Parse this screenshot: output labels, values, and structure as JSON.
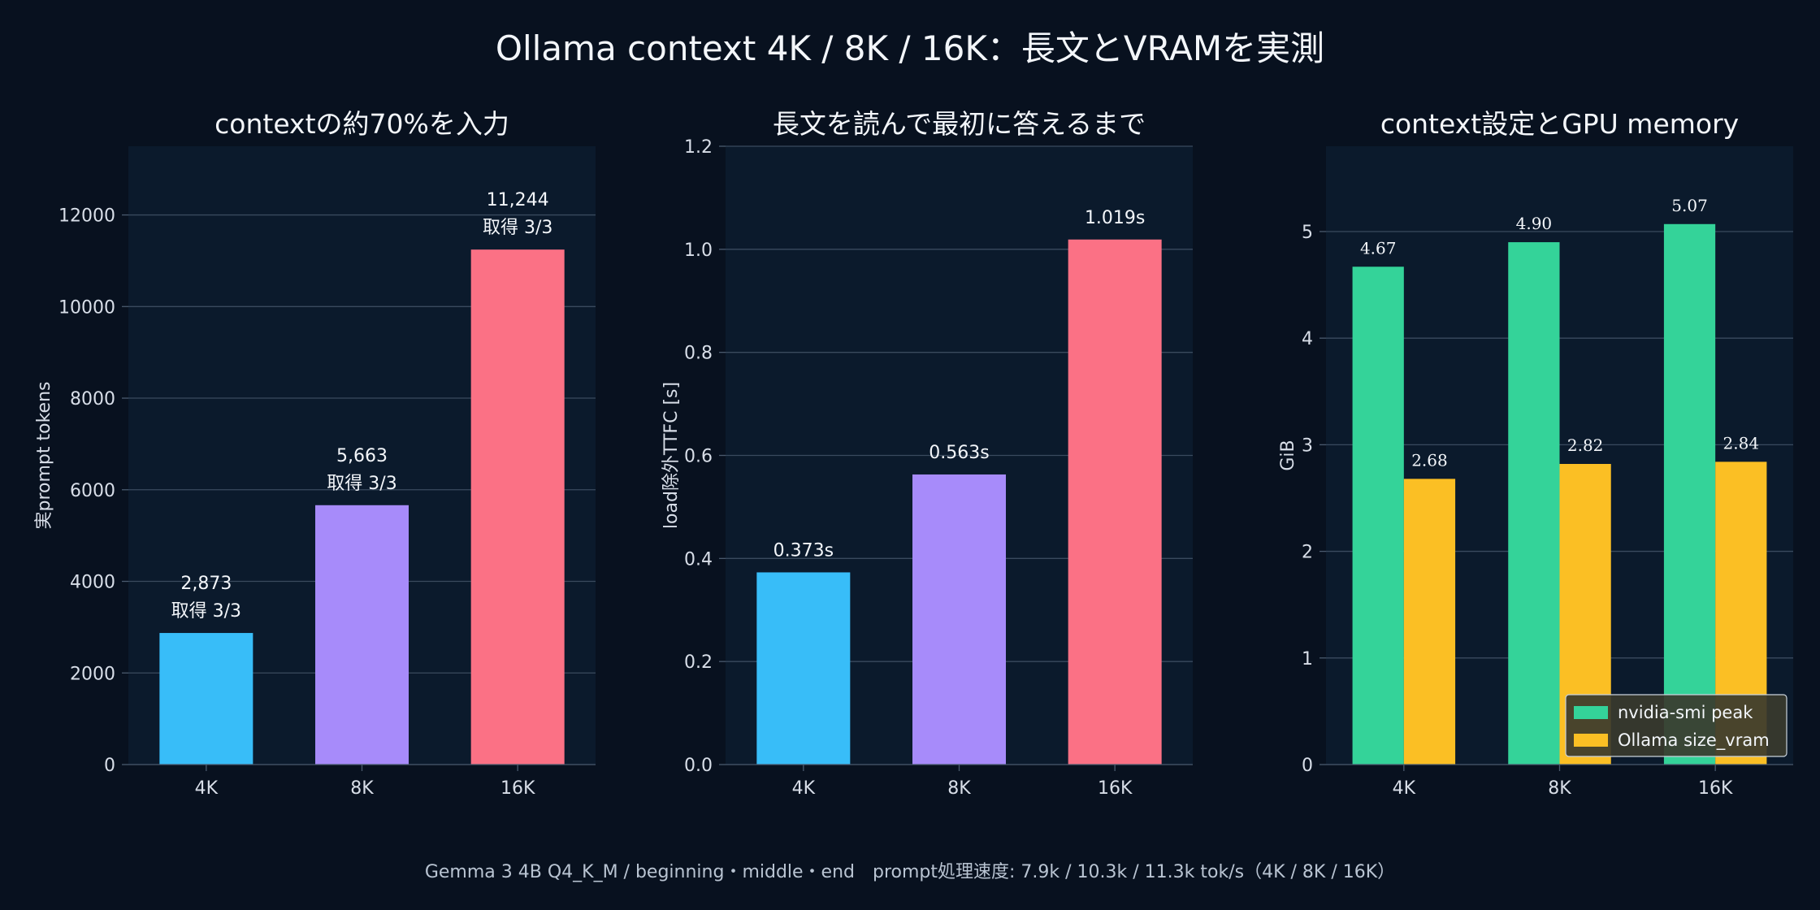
{
  "title": "Ollama context 4K / 8K / 16K：長文とVRAMを実測",
  "footer": "Gemma 3 4B Q4_K_M / beginning・middle・end　prompt処理速度: 7.9k / 10.3k / 11.3k tok/s（4K / 8K / 16K）",
  "chart_data": [
    {
      "type": "bar",
      "title": "contextの約70%を入力",
      "xlabel": "",
      "ylabel": "実prompt tokens",
      "categories": [
        "4K",
        "8K",
        "16K"
      ],
      "values": [
        2873,
        5663,
        11244
      ],
      "value_labels": [
        "2,873",
        "5,663",
        "11,244"
      ],
      "sub_labels": [
        "取得 3/3",
        "取得 3/3",
        "取得 3/3"
      ],
      "colors": [
        "#38bdf8",
        "#a78bfa",
        "#fb7185"
      ],
      "ylim": [
        0,
        13500
      ],
      "yticks": [
        0,
        2000,
        4000,
        6000,
        8000,
        10000,
        12000
      ],
      "ytick_labels": [
        "0",
        "2000",
        "4000",
        "6000",
        "8000",
        "10000",
        "12000"
      ],
      "grid": true
    },
    {
      "type": "bar",
      "title": "長文を読んで最初に答えるまで",
      "xlabel": "",
      "ylabel": "load除外TTFC [s]",
      "categories": [
        "4K",
        "8K",
        "16K"
      ],
      "values": [
        0.373,
        0.563,
        1.019
      ],
      "value_labels": [
        "0.373s",
        "0.563s",
        "1.019s"
      ],
      "colors": [
        "#38bdf8",
        "#a78bfa",
        "#fb7185"
      ],
      "ylim": [
        0,
        1.2
      ],
      "yticks": [
        0,
        0.2,
        0.4,
        0.6,
        0.8,
        1.0,
        1.2
      ],
      "ytick_labels": [
        "0.0",
        "0.2",
        "0.4",
        "0.6",
        "0.8",
        "1.0",
        "1.2"
      ],
      "grid": true
    },
    {
      "type": "bar",
      "title": "context設定とGPU memory",
      "xlabel": "",
      "ylabel": "GiB",
      "categories": [
        "4K",
        "8K",
        "16K"
      ],
      "series": [
        {
          "name": "nvidia-smi peak",
          "values": [
            4.67,
            4.9,
            5.07
          ],
          "value_labels": [
            "4.67",
            "4.90",
            "5.07"
          ],
          "color": "#34d399"
        },
        {
          "name": "Ollama size_vram",
          "values": [
            2.68,
            2.82,
            2.84
          ],
          "value_labels": [
            "2.68",
            "2.82",
            "2.84"
          ],
          "color": "#fbbf24"
        }
      ],
      "ylim": [
        0,
        5.8
      ],
      "yticks": [
        0,
        1,
        2,
        3,
        4,
        5
      ],
      "ytick_labels": [
        "0",
        "1",
        "2",
        "3",
        "4",
        "5"
      ],
      "legend": "bottom-right",
      "grid": true
    }
  ]
}
